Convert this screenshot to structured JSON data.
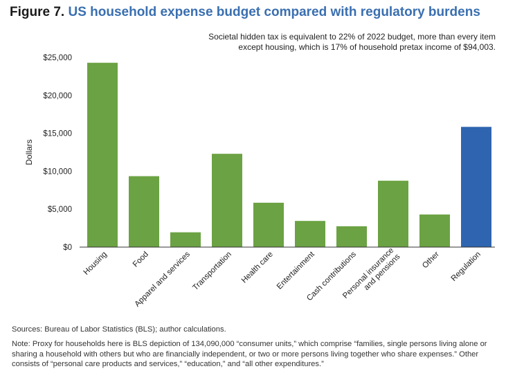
{
  "figure": {
    "label": "Figure 7.",
    "title": "US household expense budget compared with regulatory burdens",
    "subtitle_line1": "Societal hidden tax is equivalent to 22% of 2022 budget, more than every item",
    "subtitle_line2": "except housing, which is 17% of household pretax income of $94,003."
  },
  "chart_data": {
    "type": "bar",
    "ylabel": "Dollars",
    "xlabel": "",
    "ylim": [
      0,
      25000
    ],
    "yticks": [
      0,
      5000,
      10000,
      15000,
      20000,
      25000
    ],
    "ytick_labels": [
      "$0",
      "$5,000",
      "$10,000",
      "$15,000",
      "$20,000",
      "$25,000"
    ],
    "grid": false,
    "categories": [
      "Housing",
      "Food",
      "Apparel and services",
      "Transportation",
      "Health care",
      "Entertainment",
      "Cash contributions",
      "Personal insurance and pensions",
      "Other",
      "Regulation"
    ],
    "category_label_lines": [
      [
        "Housing"
      ],
      [
        "Food"
      ],
      [
        "Apparel and services"
      ],
      [
        "Transportation"
      ],
      [
        "Health care"
      ],
      [
        "Entertainment"
      ],
      [
        "Cash contributions"
      ],
      [
        "Personal insurance",
        "and pensions"
      ],
      [
        "Other"
      ],
      [
        "Regulation"
      ]
    ],
    "values": [
      24300,
      9350,
      1950,
      12300,
      5850,
      3450,
      2750,
      8750,
      4300,
      15850
    ],
    "colors": [
      "#6ba243",
      "#6ba243",
      "#6ba243",
      "#6ba243",
      "#6ba243",
      "#6ba243",
      "#6ba243",
      "#6ba243",
      "#6ba243",
      "#2f65b0"
    ]
  },
  "footer": {
    "sources": "Sources: Bureau of Labor Statistics (BLS); author calculations.",
    "note": "Note: Proxy for households here is BLS depiction of 134,090,000 “consumer units,” which comprise “families, single persons living alone or sharing a household with others but who are financially independent, or two or more persons living together who share expenses.” Other consists of “personal care products and services,” “education,” and “all other expenditures.”"
  }
}
